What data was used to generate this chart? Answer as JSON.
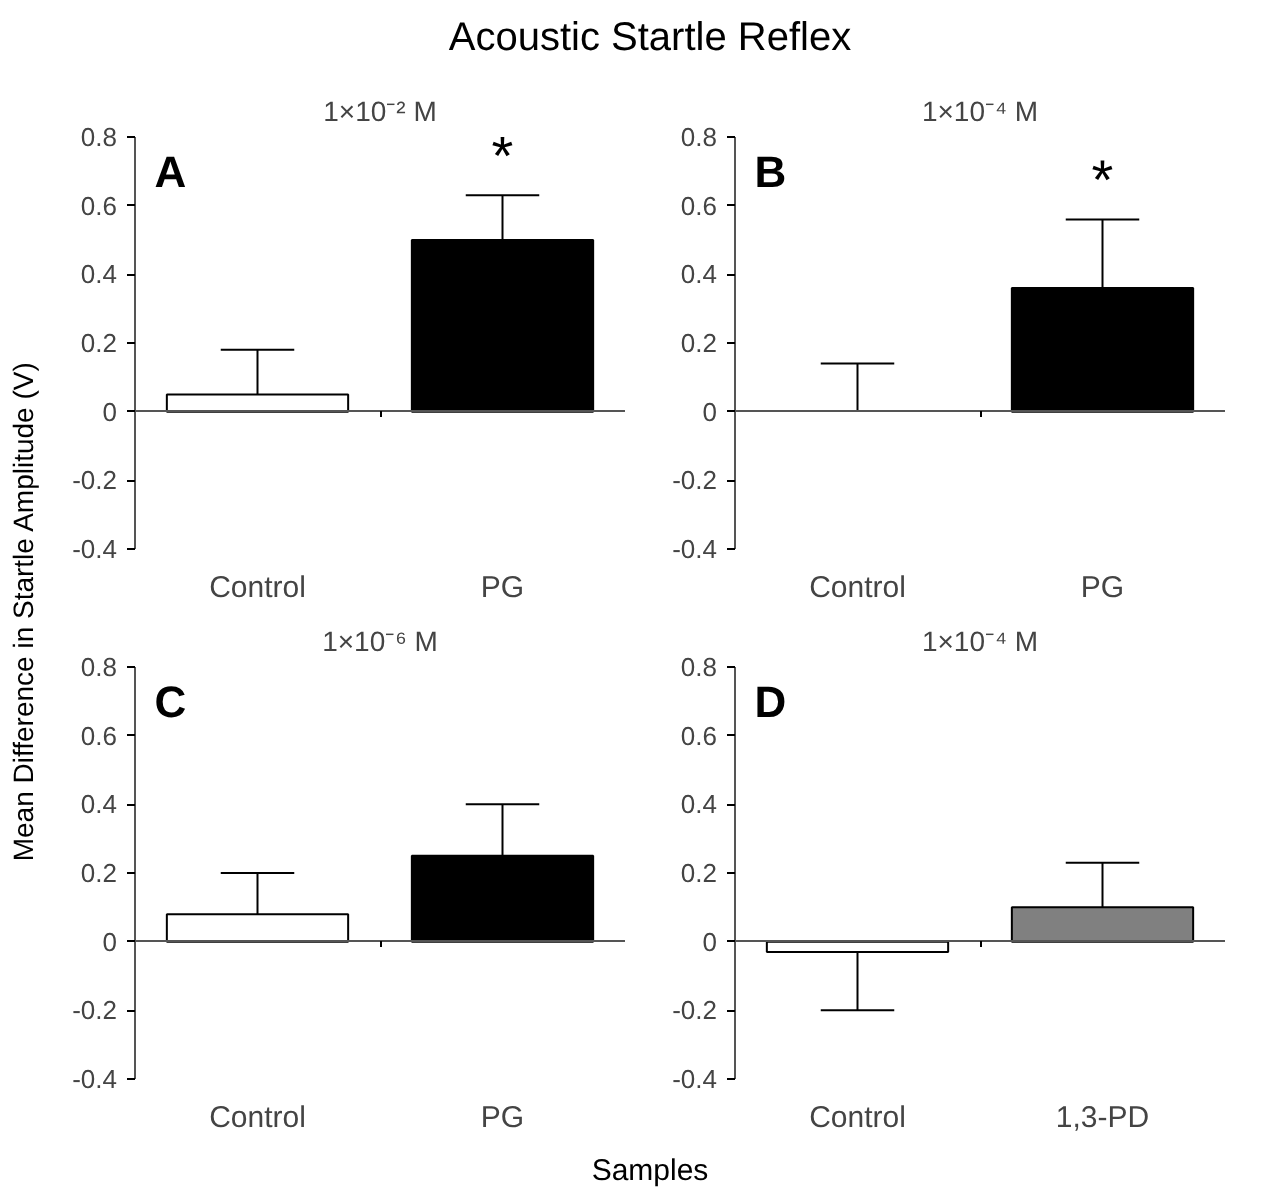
{
  "chart_data": [
    {
      "type": "bar",
      "title": "Acoustic Startle Reflex",
      "subtitle": "1×10⁻² M",
      "ylabel": "Mean Difference in Startle Amplitude (V)",
      "categories": [
        "Control",
        "PG"
      ],
      "values": [
        0.05,
        0.5
      ],
      "colors": [
        "#ffffff",
        "#000000"
      ],
      "errors": [
        [
          0.05,
          0.18
        ],
        [
          0.5,
          0.63
        ]
      ],
      "ylim": [
        -0.4,
        0.8
      ],
      "yticks": [
        -0.4,
        -0.2,
        0,
        0.2,
        0.4,
        0.6,
        0.8
      ],
      "annotations": [
        "A",
        "*"
      ]
    },
    {
      "type": "bar",
      "subtitle": "1×10⁻⁴ M",
      "categories": [
        "Control",
        "PG"
      ],
      "values": [
        0,
        0.36
      ],
      "colors": [
        "#ffffff",
        "#000000"
      ],
      "errors": [
        [
          0,
          0.14
        ],
        [
          0.36,
          0.56
        ]
      ],
      "ylim": [
        -0.4,
        0.8
      ],
      "yticks": [
        -0.4,
        -0.2,
        0,
        0.2,
        0.4,
        0.6,
        0.8
      ],
      "annotations": [
        "B",
        "*"
      ]
    },
    {
      "type": "bar",
      "subtitle": "1×10⁻⁶ M",
      "xlabel": "Samples",
      "categories": [
        "Control",
        "PG"
      ],
      "values": [
        0.08,
        0.25
      ],
      "colors": [
        "#ffffff",
        "#000000"
      ],
      "errors": [
        [
          0.08,
          0.2
        ],
        [
          0.25,
          0.4
        ]
      ],
      "ylim": [
        -0.4,
        0.8
      ],
      "yticks": [
        -0.4,
        -0.2,
        0,
        0.2,
        0.4,
        0.6,
        0.8
      ],
      "annotations": [
        "C"
      ]
    },
    {
      "type": "bar",
      "subtitle": "1×10⁻⁴ M",
      "categories": [
        "Control",
        "1,3-PD"
      ],
      "values": [
        -0.03,
        0.1
      ],
      "colors": [
        "#ffffff",
        "#808080"
      ],
      "errors": [
        [
          -0.2,
          -0.03
        ],
        [
          0.1,
          0.23
        ]
      ],
      "ylim": [
        -0.4,
        0.8
      ],
      "yticks": [
        -0.4,
        -0.2,
        0,
        0.2,
        0.4,
        0.6,
        0.8
      ],
      "annotations": [
        "D"
      ]
    }
  ]
}
